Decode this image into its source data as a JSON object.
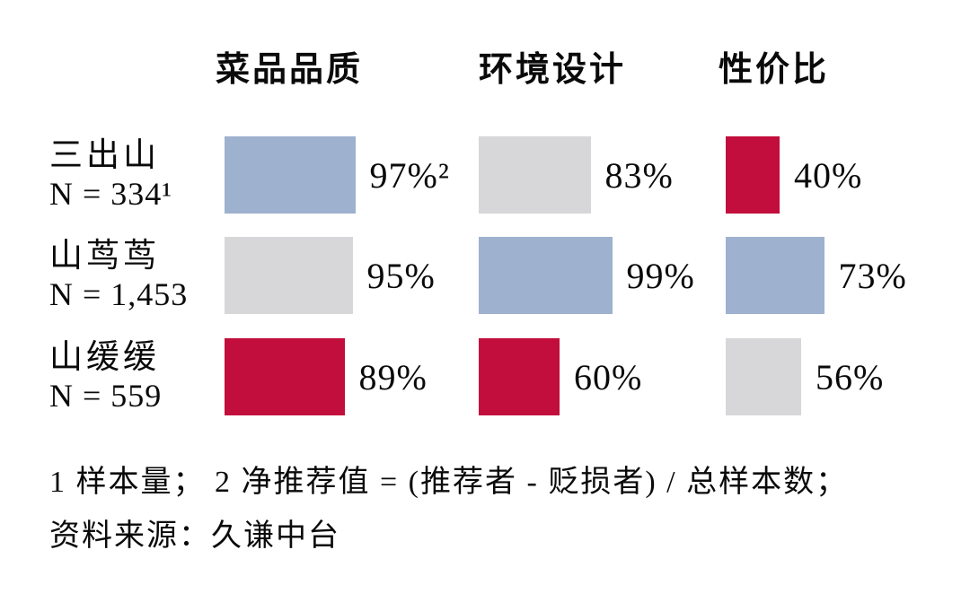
{
  "colors": {
    "blue": "#9EB1CE",
    "gray": "#D7D7D9",
    "red": "#C20E3C"
  },
  "chart_data": {
    "type": "bar",
    "orientation": "horizontal",
    "unit": "%",
    "xlim": [
      0,
      100
    ],
    "grid": false,
    "legend": null,
    "title": "",
    "categories": [
      "菜品品质",
      "环境设计",
      "性价比"
    ],
    "rows": [
      {
        "name": "三出山",
        "n_label": "N = 334¹",
        "cells": [
          {
            "value": 97,
            "label": "97%²",
            "color": "blue"
          },
          {
            "value": 83,
            "label": "83%",
            "color": "gray"
          },
          {
            "value": 40,
            "label": "40%",
            "color": "red"
          }
        ]
      },
      {
        "name": "山茑茑",
        "n_label": "N = 1,453",
        "cells": [
          {
            "value": 95,
            "label": "95%",
            "color": "gray"
          },
          {
            "value": 99,
            "label": "99%",
            "color": "blue"
          },
          {
            "value": 73,
            "label": "73%",
            "color": "blue"
          }
        ]
      },
      {
        "name": "山缓缓",
        "n_label": "N = 559",
        "cells": [
          {
            "value": 89,
            "label": "89%",
            "color": "red"
          },
          {
            "value": 60,
            "label": "60%",
            "color": "red"
          },
          {
            "value": 56,
            "label": "56%",
            "color": "gray"
          }
        ]
      }
    ]
  },
  "footnotes": {
    "line1": "1 样本量； 2 净推荐值 = (推荐者 - 贬损者) / 总样本数；",
    "line2": "资料来源：久谦中台"
  }
}
